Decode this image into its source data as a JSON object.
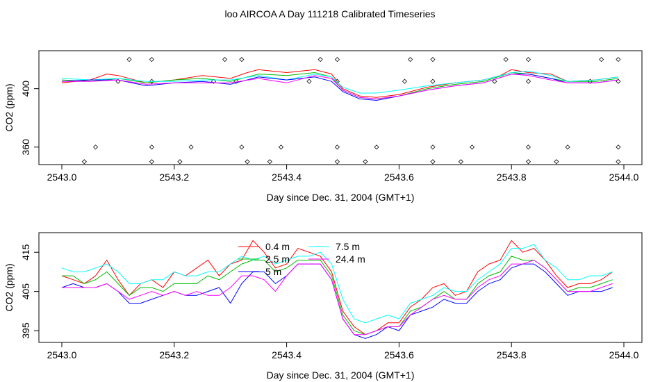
{
  "title": "loo AIRCOA A  Day 111218  Calibrated Timeseries",
  "chart_data": [
    {
      "type": "line",
      "ylabel": "CO2 (ppm)",
      "xlabel": "Day since Dec. 31, 2004 (GMT+1)",
      "xlim": [
        2543.0,
        2544.0
      ],
      "x_ticks": [
        "2543.0",
        "2543.2",
        "2543.4",
        "2543.6",
        "2543.8",
        "2544.0"
      ],
      "y_ticks": [
        "360",
        "400"
      ],
      "ylim": [
        348,
        426
      ],
      "grid": false,
      "series": [
        {
          "color": "#ff0000",
          "x": [
            2543.0,
            2543.05,
            2543.08,
            2543.1,
            2543.15,
            2543.2,
            2543.25,
            2543.3,
            2543.33,
            2543.35,
            2543.4,
            2543.45,
            2543.48,
            2543.5,
            2543.53,
            2543.56,
            2543.6,
            2543.65,
            2543.7,
            2543.75,
            2543.78,
            2543.8,
            2543.83,
            2543.87,
            2543.9,
            2543.95,
            2543.99
          ],
          "values": [
            404,
            406,
            410,
            409,
            404,
            406,
            409,
            407,
            411,
            413,
            411,
            413,
            410,
            400,
            395,
            394,
            396,
            401,
            404,
            406,
            409,
            413,
            411,
            410,
            405,
            406,
            408
          ]
        },
        {
          "color": "#00bb00",
          "x": [
            2543.0,
            2543.05,
            2543.1,
            2543.15,
            2543.2,
            2543.25,
            2543.3,
            2543.35,
            2543.4,
            2543.45,
            2543.48,
            2543.5,
            2543.53,
            2543.56,
            2543.6,
            2543.65,
            2543.7,
            2543.75,
            2543.8,
            2543.83,
            2543.87,
            2543.9,
            2543.95,
            2543.99
          ],
          "values": [
            406,
            405,
            407,
            404,
            406,
            407,
            405,
            410,
            409,
            411,
            408,
            399,
            394,
            393,
            395,
            400,
            403,
            405,
            411,
            410,
            407,
            405,
            405,
            407
          ]
        },
        {
          "color": "#00ffff",
          "x": [
            2543.0,
            2543.05,
            2543.1,
            2543.15,
            2543.2,
            2543.25,
            2543.3,
            2543.35,
            2543.4,
            2543.45,
            2543.48,
            2543.5,
            2543.53,
            2543.56,
            2543.6,
            2543.65,
            2543.7,
            2543.75,
            2543.8,
            2543.83,
            2543.87,
            2543.9,
            2543.95,
            2543.99
          ],
          "values": [
            407,
            406,
            407,
            405,
            405,
            406,
            406,
            409,
            406,
            410,
            408,
            401,
            397,
            397,
            399,
            402,
            404,
            406,
            411,
            412,
            409,
            405,
            406,
            408
          ]
        },
        {
          "color": "#0000ff",
          "x": [
            2543.0,
            2543.05,
            2543.1,
            2543.15,
            2543.2,
            2543.25,
            2543.3,
            2543.35,
            2543.4,
            2543.45,
            2543.48,
            2543.5,
            2543.53,
            2543.56,
            2543.6,
            2543.65,
            2543.7,
            2543.75,
            2543.8,
            2543.83,
            2543.87,
            2543.9,
            2543.95,
            2543.99
          ],
          "values": [
            405,
            406,
            406,
            402,
            404,
            405,
            403,
            408,
            406,
            408,
            405,
            398,
            393,
            392,
            395,
            399,
            402,
            404,
            410,
            410,
            407,
            404,
            404,
            406
          ]
        },
        {
          "color": "#ff00ff",
          "x": [
            2543.0,
            2543.05,
            2543.1,
            2543.15,
            2543.2,
            2543.25,
            2543.3,
            2543.35,
            2543.4,
            2543.45,
            2543.48,
            2543.5,
            2543.53,
            2543.56,
            2543.6,
            2543.65,
            2543.7,
            2543.75,
            2543.8,
            2543.83,
            2543.87,
            2543.9,
            2543.95,
            2543.99
          ],
          "values": [
            405,
            405,
            406,
            403,
            404,
            404,
            404,
            407,
            404,
            409,
            407,
            399,
            394,
            393,
            395,
            399,
            402,
            404,
            410,
            409,
            406,
            404,
            404,
            406
          ]
        }
      ],
      "markers": {
        "rows": [
          420,
          405,
          360,
          350
        ],
        "x": [
          [
            2543.12,
            2543.16,
            2543.29,
            2543.32,
            2543.46,
            2543.49,
            2543.62,
            2543.66,
            2543.79,
            2543.83,
            2543.96,
            2543.99
          ],
          [
            2543.1,
            2543.16,
            2543.27,
            2543.31,
            2543.44,
            2543.49,
            2543.61,
            2543.66,
            2543.77,
            2543.83,
            2543.94,
            2543.99
          ],
          [
            2543.06,
            2543.16,
            2543.23,
            2543.32,
            2543.39,
            2543.49,
            2543.56,
            2543.66,
            2543.73,
            2543.83,
            2543.9,
            2543.99
          ],
          [
            2543.04,
            2543.16,
            2543.21,
            2543.33,
            2543.37,
            2543.49,
            2543.54,
            2543.66,
            2543.71,
            2543.83,
            2543.88,
            2543.99
          ]
        ]
      }
    },
    {
      "type": "line",
      "ylabel": "CO2 (ppm)",
      "xlabel": "Day since Dec. 31, 2004 (GMT+1)",
      "xlim": [
        2543.0,
        2544.0
      ],
      "x_ticks": [
        "2543.0",
        "2543.2",
        "2543.4",
        "2543.6",
        "2543.8",
        "2544.0"
      ],
      "y_ticks": [
        "395",
        "405",
        "415"
      ],
      "ylim": [
        392,
        420
      ],
      "grid": false,
      "legend": {
        "placement": "top-center",
        "entries": [
          {
            "label": "0.4 m",
            "color": "#ff0000"
          },
          {
            "label": "2.5 m",
            "color": "#00bb00"
          },
          {
            "label": "5 m",
            "color": "#0000ff"
          },
          {
            "label": "7.5 m",
            "color": "#00ffff"
          },
          {
            "label": "24.4 m",
            "color": "#ff00ff"
          }
        ]
      },
      "series": [
        {
          "name": "0.4 m",
          "color": "#ff0000",
          "x": [
            2543.0,
            2543.02,
            2543.04,
            2543.06,
            2543.08,
            2543.1,
            2543.12,
            2543.14,
            2543.16,
            2543.18,
            2543.2,
            2543.22,
            2543.24,
            2543.26,
            2543.28,
            2543.3,
            2543.32,
            2543.34,
            2543.36,
            2543.38,
            2543.4,
            2543.42,
            2543.44,
            2543.46,
            2543.48,
            2543.5,
            2543.52,
            2543.54,
            2543.56,
            2543.58,
            2543.6,
            2543.62,
            2543.64,
            2543.66,
            2543.68,
            2543.7,
            2543.72,
            2543.74,
            2543.76,
            2543.78,
            2543.8,
            2543.82,
            2543.84,
            2543.86,
            2543.88,
            2543.9,
            2543.92,
            2543.94,
            2543.96,
            2543.98
          ],
          "values": [
            409,
            408,
            407,
            409,
            413,
            408,
            404,
            407,
            408,
            406,
            410,
            409,
            411,
            413,
            409,
            412,
            413,
            418,
            415,
            411,
            412,
            416,
            415,
            414,
            410,
            400,
            396,
            394,
            395,
            397,
            397,
            401,
            403,
            406,
            407,
            404,
            405,
            410,
            412,
            413,
            418,
            415,
            416,
            413,
            409,
            406,
            407,
            407,
            408,
            410
          ]
        },
        {
          "name": "2.5 m",
          "color": "#00bb00",
          "x": [
            2543.0,
            2543.02,
            2543.04,
            2543.06,
            2543.08,
            2543.1,
            2543.12,
            2543.14,
            2543.16,
            2543.18,
            2543.2,
            2543.22,
            2543.24,
            2543.26,
            2543.28,
            2543.3,
            2543.32,
            2543.34,
            2543.36,
            2543.38,
            2543.4,
            2543.42,
            2543.44,
            2543.46,
            2543.48,
            2543.5,
            2543.52,
            2543.54,
            2543.56,
            2543.58,
            2543.6,
            2543.62,
            2543.64,
            2543.66,
            2543.68,
            2543.7,
            2543.72,
            2543.74,
            2543.76,
            2543.78,
            2543.8,
            2543.82,
            2543.84,
            2543.86,
            2543.88,
            2543.9,
            2543.92,
            2543.94,
            2543.96,
            2543.98
          ],
          "values": [
            409,
            409,
            407,
            408,
            410,
            407,
            404,
            406,
            406,
            405,
            407,
            407,
            407,
            409,
            408,
            410,
            412,
            413,
            413,
            410,
            411,
            413,
            413,
            413,
            409,
            399,
            395,
            394,
            395,
            396,
            396,
            400,
            401,
            403,
            405,
            403,
            403,
            407,
            409,
            410,
            414,
            413,
            413,
            411,
            408,
            405,
            406,
            406,
            407,
            408
          ]
        },
        {
          "name": "5 m",
          "color": "#0000ff",
          "x": [
            2543.0,
            2543.02,
            2543.04,
            2543.06,
            2543.08,
            2543.1,
            2543.12,
            2543.14,
            2543.16,
            2543.18,
            2543.2,
            2543.22,
            2543.24,
            2543.26,
            2543.28,
            2543.3,
            2543.32,
            2543.34,
            2543.36,
            2543.38,
            2543.4,
            2543.42,
            2543.44,
            2543.46,
            2543.48,
            2543.5,
            2543.52,
            2543.54,
            2543.56,
            2543.58,
            2543.6,
            2543.62,
            2543.64,
            2543.66,
            2543.68,
            2543.7,
            2543.72,
            2543.74,
            2543.76,
            2543.78,
            2543.8,
            2543.82,
            2543.84,
            2543.86,
            2543.88,
            2543.9,
            2543.92,
            2543.94,
            2543.96,
            2543.98
          ],
          "values": [
            406,
            407,
            406,
            406,
            407,
            405,
            402,
            402,
            403,
            404,
            405,
            404,
            404,
            405,
            406,
            402,
            407,
            410,
            410,
            407,
            409,
            412,
            412,
            412,
            408,
            398,
            394,
            393,
            394,
            396,
            395,
            399,
            400,
            401,
            403,
            402,
            402,
            405,
            407,
            408,
            411,
            412,
            412,
            410,
            407,
            404,
            405,
            405,
            405,
            406
          ]
        },
        {
          "name": "7.5 m",
          "color": "#00ffff",
          "x": [
            2543.0,
            2543.02,
            2543.04,
            2543.06,
            2543.08,
            2543.1,
            2543.12,
            2543.14,
            2543.16,
            2543.18,
            2543.2,
            2543.22,
            2543.24,
            2543.26,
            2543.28,
            2543.3,
            2543.32,
            2543.34,
            2543.36,
            2543.38,
            2543.4,
            2543.42,
            2543.44,
            2543.46,
            2543.48,
            2543.5,
            2543.52,
            2543.54,
            2543.56,
            2543.58,
            2543.6,
            2543.62,
            2543.64,
            2543.66,
            2543.68,
            2543.7,
            2543.72,
            2543.74,
            2543.76,
            2543.78,
            2543.8,
            2543.82,
            2543.84,
            2543.86,
            2543.88,
            2543.9,
            2543.92,
            2543.94,
            2543.96,
            2543.98
          ],
          "values": [
            411,
            410,
            410,
            411,
            412,
            410,
            407,
            407,
            408,
            408,
            410,
            409,
            409,
            410,
            410,
            412,
            414,
            413,
            414,
            412,
            413,
            414,
            414,
            415,
            412,
            403,
            398,
            397,
            398,
            399,
            398,
            402,
            403,
            404,
            406,
            405,
            405,
            408,
            410,
            412,
            416,
            416,
            417,
            413,
            411,
            408,
            408,
            409,
            409,
            410
          ]
        },
        {
          "name": "24.4 m",
          "color": "#ff00ff",
          "x": [
            2543.0,
            2543.02,
            2543.04,
            2543.06,
            2543.08,
            2543.1,
            2543.12,
            2543.14,
            2543.16,
            2543.18,
            2543.2,
            2543.22,
            2543.24,
            2543.26,
            2543.28,
            2543.3,
            2543.32,
            2543.34,
            2543.36,
            2543.38,
            2543.4,
            2543.42,
            2543.44,
            2543.46,
            2543.48,
            2543.5,
            2543.52,
            2543.54,
            2543.56,
            2543.58,
            2543.6,
            2543.62,
            2543.64,
            2543.66,
            2543.68,
            2543.7,
            2543.72,
            2543.74,
            2543.76,
            2543.78,
            2543.8,
            2543.82,
            2543.84,
            2543.86,
            2543.88,
            2543.9,
            2543.92,
            2543.94,
            2543.96,
            2543.98
          ],
          "values": [
            406,
            406,
            406,
            406,
            407,
            405,
            403,
            404,
            405,
            404,
            405,
            404,
            405,
            404,
            404,
            406,
            409,
            409,
            408,
            405,
            409,
            412,
            412,
            412,
            408,
            398,
            394,
            394,
            395,
            396,
            396,
            399,
            401,
            403,
            404,
            403,
            403,
            406,
            408,
            409,
            412,
            412,
            413,
            411,
            408,
            405,
            405,
            405,
            406,
            407
          ]
        }
      ]
    }
  ]
}
